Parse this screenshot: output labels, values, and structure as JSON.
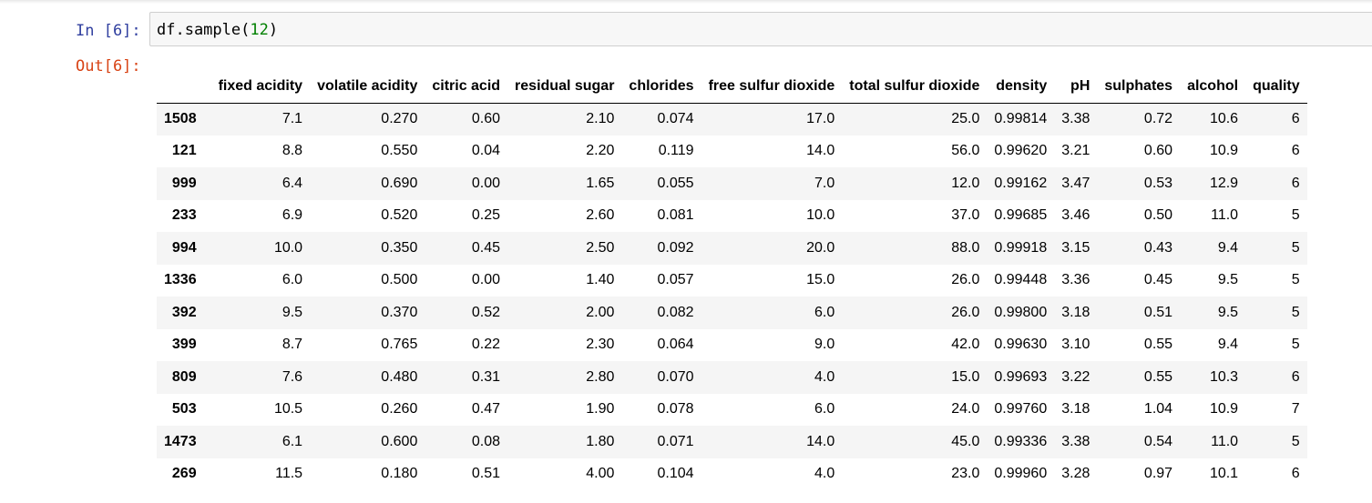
{
  "cell": {
    "in_prompt": "In [6]:",
    "out_prompt": "Out[6]:",
    "code": {
      "prefix": "df.sample(",
      "arg": "12",
      "suffix": ")"
    }
  },
  "table": {
    "index_header": "",
    "columns": [
      "fixed acidity",
      "volatile acidity",
      "citric acid",
      "residual sugar",
      "chlorides",
      "free sulfur dioxide",
      "total sulfur dioxide",
      "density",
      "pH",
      "sulphates",
      "alcohol",
      "quality"
    ],
    "rows": [
      {
        "index": "1508",
        "values": [
          "7.1",
          "0.270",
          "0.60",
          "2.10",
          "0.074",
          "17.0",
          "25.0",
          "0.99814",
          "3.38",
          "0.72",
          "10.6",
          "6"
        ]
      },
      {
        "index": "121",
        "values": [
          "8.8",
          "0.550",
          "0.04",
          "2.20",
          "0.119",
          "14.0",
          "56.0",
          "0.99620",
          "3.21",
          "0.60",
          "10.9",
          "6"
        ]
      },
      {
        "index": "999",
        "values": [
          "6.4",
          "0.690",
          "0.00",
          "1.65",
          "0.055",
          "7.0",
          "12.0",
          "0.99162",
          "3.47",
          "0.53",
          "12.9",
          "6"
        ]
      },
      {
        "index": "233",
        "values": [
          "6.9",
          "0.520",
          "0.25",
          "2.60",
          "0.081",
          "10.0",
          "37.0",
          "0.99685",
          "3.46",
          "0.50",
          "11.0",
          "5"
        ]
      },
      {
        "index": "994",
        "values": [
          "10.0",
          "0.350",
          "0.45",
          "2.50",
          "0.092",
          "20.0",
          "88.0",
          "0.99918",
          "3.15",
          "0.43",
          "9.4",
          "5"
        ]
      },
      {
        "index": "1336",
        "values": [
          "6.0",
          "0.500",
          "0.00",
          "1.40",
          "0.057",
          "15.0",
          "26.0",
          "0.99448",
          "3.36",
          "0.45",
          "9.5",
          "5"
        ]
      },
      {
        "index": "392",
        "values": [
          "9.5",
          "0.370",
          "0.52",
          "2.00",
          "0.082",
          "6.0",
          "26.0",
          "0.99800",
          "3.18",
          "0.51",
          "9.5",
          "5"
        ]
      },
      {
        "index": "399",
        "values": [
          "8.7",
          "0.765",
          "0.22",
          "2.30",
          "0.064",
          "9.0",
          "42.0",
          "0.99630",
          "3.10",
          "0.55",
          "9.4",
          "5"
        ]
      },
      {
        "index": "809",
        "values": [
          "7.6",
          "0.480",
          "0.31",
          "2.80",
          "0.070",
          "4.0",
          "15.0",
          "0.99693",
          "3.22",
          "0.55",
          "10.3",
          "6"
        ]
      },
      {
        "index": "503",
        "values": [
          "10.5",
          "0.260",
          "0.47",
          "1.90",
          "0.078",
          "6.0",
          "24.0",
          "0.99760",
          "3.18",
          "1.04",
          "10.9",
          "7"
        ]
      },
      {
        "index": "1473",
        "values": [
          "6.1",
          "0.600",
          "0.08",
          "1.80",
          "0.071",
          "14.0",
          "45.0",
          "0.99336",
          "3.38",
          "0.54",
          "11.0",
          "5"
        ]
      },
      {
        "index": "269",
        "values": [
          "11.5",
          "0.180",
          "0.51",
          "4.00",
          "0.104",
          "4.0",
          "23.0",
          "0.99960",
          "3.28",
          "0.97",
          "10.1",
          "6"
        ]
      }
    ]
  },
  "colors": {
    "in_prompt": "#303f9f",
    "out_prompt": "#d84315",
    "code_number": "#008000",
    "input_bg": "#f7f7f7",
    "row_stripe": "#f5f5f5"
  }
}
